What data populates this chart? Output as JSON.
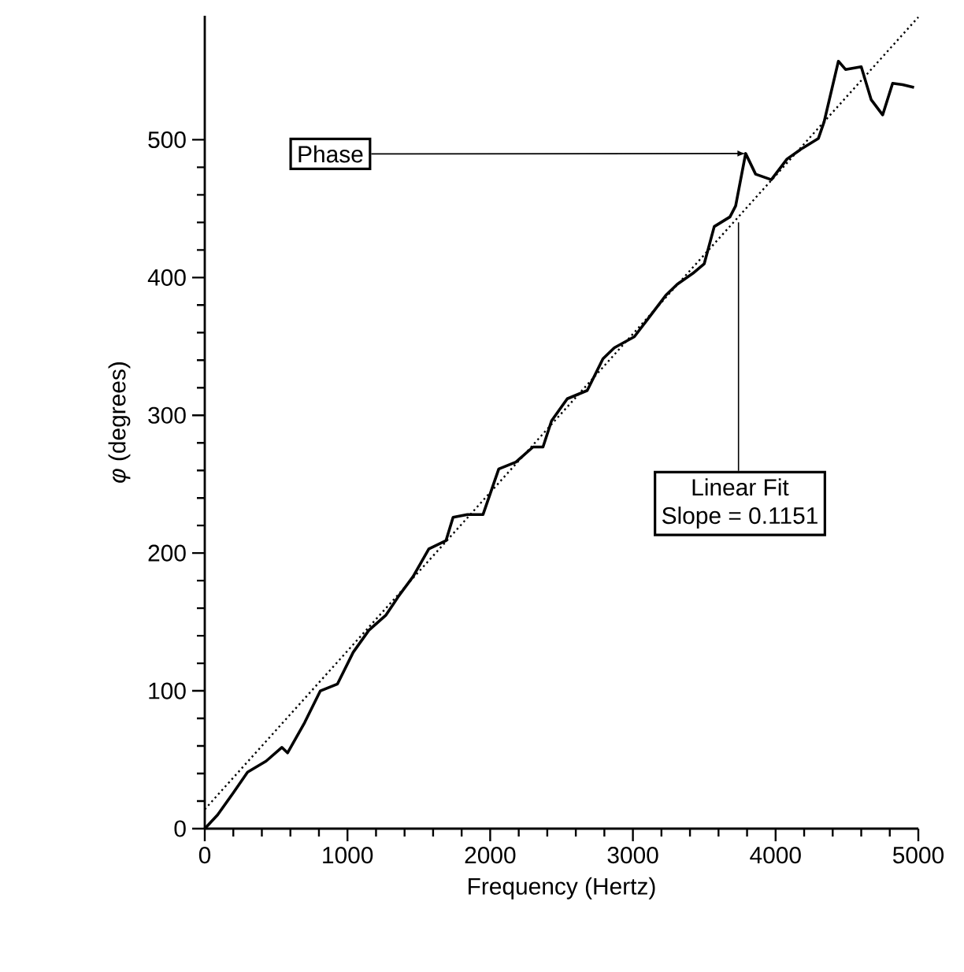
{
  "chart_data": {
    "type": "line",
    "xlabel": "Frequency (Hertz)",
    "ylabel": "*φ* (degrees)",
    "xlim": [
      0,
      5000
    ],
    "ylim": [
      0,
      590
    ],
    "xticks": [
      0,
      1000,
      2000,
      3000,
      4000,
      5000
    ],
    "yticks": [
      0,
      100,
      200,
      300,
      400,
      500
    ],
    "series": [
      {
        "color": "#000000",
        "line_style": "solid",
        "x": [
          0,
          90,
          200,
          300,
          430,
          540,
          580,
          700,
          810,
          930,
          1040,
          1150,
          1270,
          1360,
          1460,
          1570,
          1690,
          1740,
          1840,
          1950,
          2060,
          2180,
          2300,
          2370,
          2430,
          2540,
          2680,
          2790,
          2870,
          3010,
          3120,
          3230,
          3310,
          3420,
          3500,
          3570,
          3680,
          3720,
          3790,
          3860,
          3970,
          4080,
          4190,
          4300,
          4340,
          4440,
          4490,
          4600,
          4670,
          4750,
          4820,
          4890,
          4970
        ],
        "values": [
          0,
          10,
          26,
          41,
          49,
          59,
          55,
          77,
          100,
          105,
          128,
          144,
          155,
          169,
          183,
          203,
          209,
          226,
          228,
          228,
          261,
          266,
          277,
          277,
          296,
          312,
          318,
          341,
          349,
          357,
          372,
          387,
          395,
          403,
          410,
          437,
          444,
          452,
          490,
          475,
          471,
          486,
          494,
          501,
          513,
          557,
          551,
          553,
          529,
          518,
          541,
          540,
          538
        ]
      },
      {
        "color": "#000000",
        "line_style": "dotted",
        "x": [
          0,
          5000
        ],
        "values": [
          14,
          589
        ]
      }
    ],
    "annotations": [
      {
        "text": "Phase",
        "x": 3790,
        "y": 490
      },
      {
        "text": "Linear Fit",
        "x": 3740,
        "y": 440
      },
      "Slope = 0.1151"
    ],
    "grid": false
  }
}
